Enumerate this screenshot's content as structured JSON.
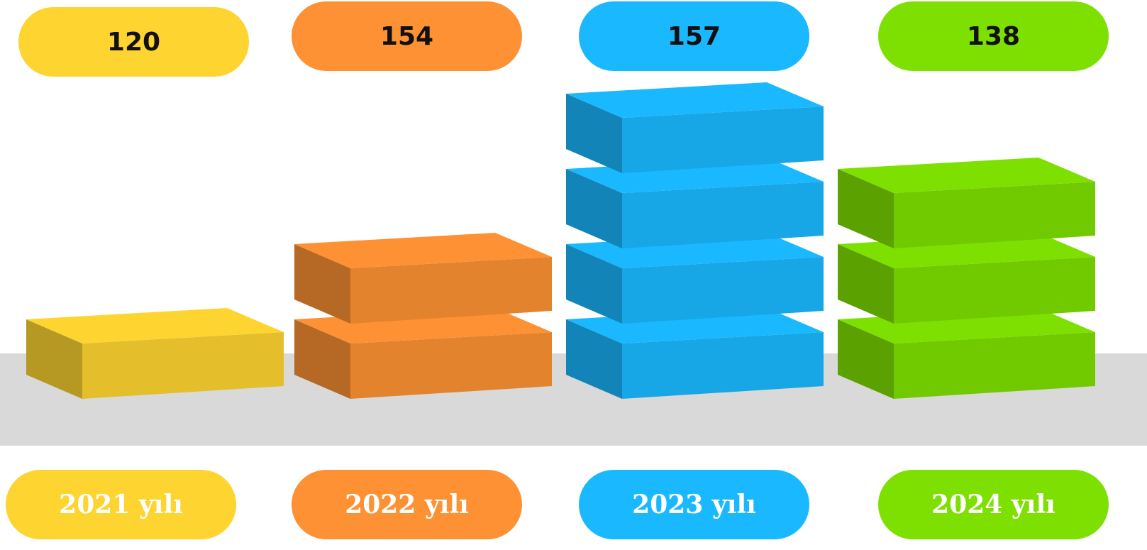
{
  "chart_data": {
    "type": "bar",
    "categories": [
      "2021 yılı",
      "2022 yılı",
      "2023 yılı",
      "2024 yılı"
    ],
    "values": [
      120,
      154,
      157,
      138
    ],
    "value_labels": [
      "120",
      "154",
      "157",
      "138"
    ],
    "blocks": [
      1,
      2,
      4,
      3
    ],
    "colors": [
      "#fdd430",
      "#fd9133",
      "#1ab8ff",
      "#7ee000"
    ],
    "title": "",
    "xlabel": "",
    "ylabel": ""
  }
}
